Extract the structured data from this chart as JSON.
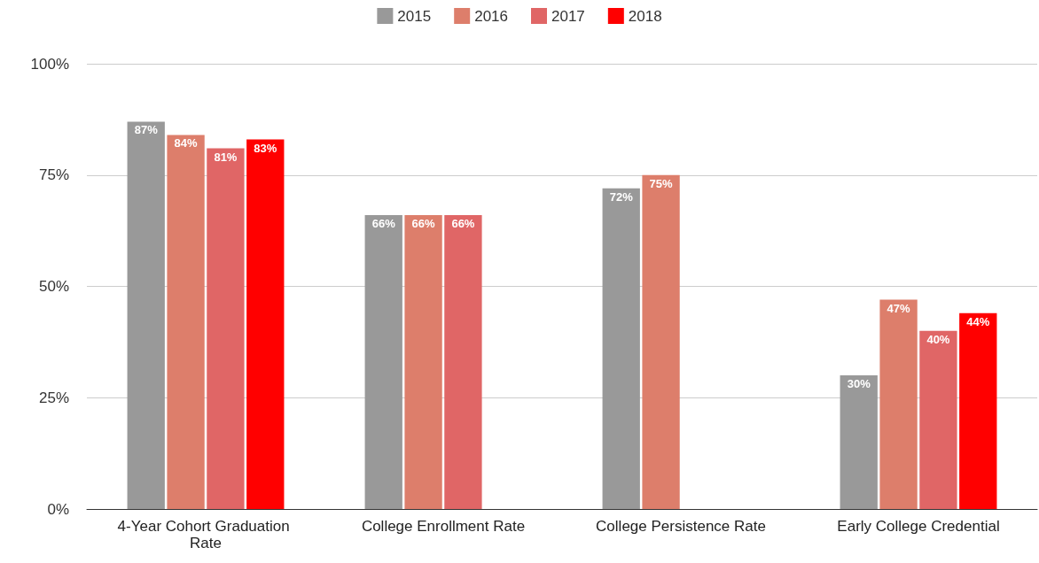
{
  "chart_data": {
    "type": "bar",
    "categories": [
      "4-Year Cohort Graduation Rate",
      "College Enrollment Rate",
      "College Persistence Rate",
      "Early College Credential"
    ],
    "series": [
      {
        "name": "2015",
        "color": "#999999",
        "values": [
          87,
          66,
          72,
          30
        ],
        "value_labels": [
          "87%",
          "66%",
          "72%",
          "30%"
        ]
      },
      {
        "name": "2016",
        "color": "#dd7e6b",
        "values": [
          84,
          66,
          75,
          47
        ],
        "value_labels": [
          "84%",
          "66%",
          "75%",
          "47%"
        ]
      },
      {
        "name": "2017",
        "color": "#e06666",
        "values": [
          81,
          66,
          null,
          40
        ],
        "value_labels": [
          "81%",
          "66%",
          null,
          "40%"
        ]
      },
      {
        "name": "2018",
        "color": "#ff0000",
        "values": [
          83,
          null,
          null,
          44
        ],
        "value_labels": [
          "83%",
          null,
          null,
          "44%"
        ]
      }
    ],
    "ylim": [
      0,
      100
    ],
    "yticks": [
      {
        "value": 0,
        "label": "0%"
      },
      {
        "value": 25,
        "label": "25%"
      },
      {
        "value": 50,
        "label": "50%"
      },
      {
        "value": 75,
        "label": "75%"
      },
      {
        "value": 100,
        "label": "100%"
      }
    ],
    "grid": "y",
    "legend": "top"
  }
}
